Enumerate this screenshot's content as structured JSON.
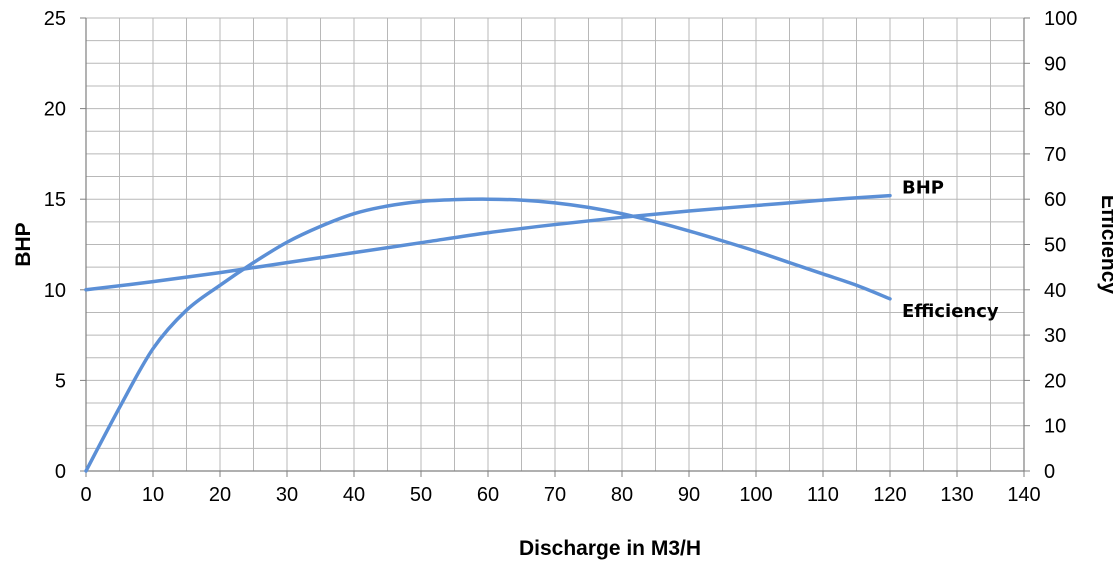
{
  "chart_data": {
    "type": "line",
    "xlabel": "Discharge in M3/H",
    "ylabel": "BHP",
    "y2label": "Efficiency",
    "xlim": [
      0,
      140
    ],
    "ylim": [
      0,
      25
    ],
    "y2lim": [
      0,
      100
    ],
    "x_ticks": [
      "0",
      "10",
      "20",
      "30",
      "40",
      "50",
      "60",
      "70",
      "80",
      "90",
      "100",
      "110",
      "120",
      "130",
      "140"
    ],
    "y_ticks": [
      "0",
      "5",
      "10",
      "15",
      "20",
      "25"
    ],
    "y2_ticks": [
      "0",
      "10",
      "20",
      "30",
      "40",
      "50",
      "60",
      "70",
      "80",
      "90",
      "100"
    ],
    "grid": true,
    "colors": {
      "line": "#5b8fd6",
      "grid": "#b8b8b8",
      "axis": "#808080"
    },
    "series": [
      {
        "name": "BHP",
        "axis": "left",
        "x": [
          0,
          10,
          20,
          30,
          40,
          50,
          60,
          70,
          80,
          90,
          100,
          110,
          120
        ],
        "y": [
          10.0,
          10.45,
          10.95,
          11.5,
          12.05,
          12.6,
          13.15,
          13.6,
          14.0,
          14.35,
          14.65,
          14.95,
          15.2
        ]
      },
      {
        "name": "Efficiency",
        "axis": "right",
        "x": [
          0,
          5,
          10,
          15,
          20,
          25,
          30,
          35,
          40,
          45,
          50,
          55,
          60,
          65,
          70,
          75,
          80,
          85,
          90,
          95,
          100,
          105,
          110,
          115,
          120
        ],
        "y": [
          0,
          14,
          27,
          35.5,
          41,
          46,
          50.5,
          54,
          56.8,
          58.5,
          59.5,
          59.9,
          60.0,
          59.8,
          59.2,
          58.2,
          56.8,
          55,
          53,
          50.8,
          48.5,
          46,
          43.5,
          41,
          38
        ]
      }
    ]
  }
}
